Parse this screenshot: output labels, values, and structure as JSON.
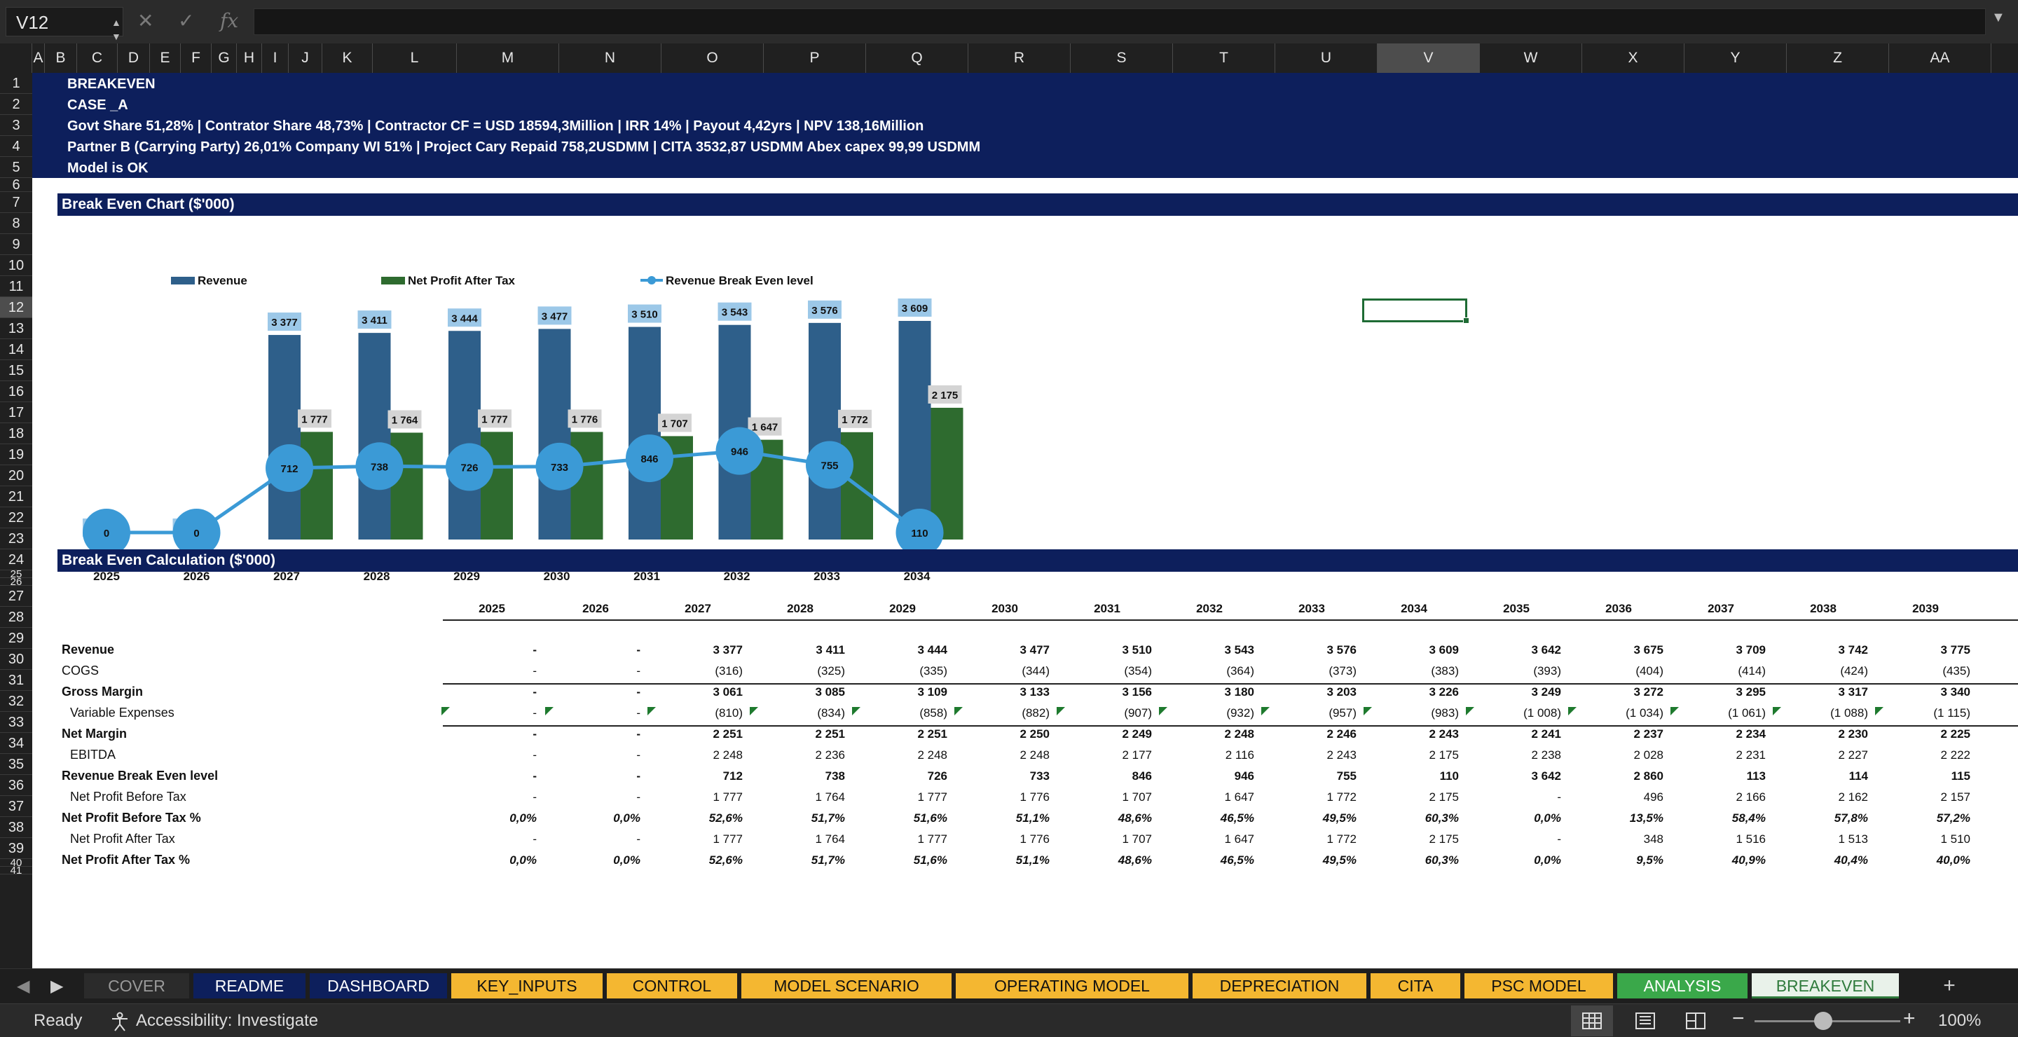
{
  "formula_bar": {
    "cell_ref": "V12",
    "fx": "fx",
    "cancel": "✕",
    "enter": "✓"
  },
  "columns": [
    "A",
    "B",
    "C",
    "D",
    "E",
    "F",
    "G",
    "H",
    "I",
    "J",
    "K",
    "L",
    "M",
    "N",
    "O",
    "P",
    "Q",
    "R",
    "S",
    "T",
    "U",
    "V",
    "W",
    "X",
    "Y",
    "Z",
    "AA"
  ],
  "selected_column": "V",
  "rows": [
    "1",
    "2",
    "3",
    "4",
    "5",
    "6",
    "7",
    "8",
    "9",
    "10",
    "11",
    "12",
    "13",
    "14",
    "15",
    "16",
    "17",
    "18",
    "19",
    "20",
    "21",
    "22",
    "23",
    "24",
    "25",
    "26",
    "27",
    "28",
    "29",
    "30",
    "31",
    "32",
    "33",
    "34",
    "35",
    "36",
    "37",
    "38",
    "39",
    "40",
    "41"
  ],
  "selected_row": "12",
  "header_lines": [
    "BREAKEVEN",
    "CASE _A",
    "Govt Share 51,28% | Contrator Share 48,73% |  Contractor CF = USD 18594,3Million | IRR 14% | Payout 4,42yrs | NPV 138,16Million",
    "Partner B (Carrying Party) 26,01% Company WI 51% |  Project Cary Repaid  758,2USDMM  |  CITA 3532,87  USDMM Abex capex 99,99  USDMM",
    "Model is OK"
  ],
  "chart_section_title": "Break Even Chart ($'000)",
  "calc_section_title": "Break Even Calculation ($'000)",
  "chart_data": {
    "type": "bar",
    "categories": [
      "2025",
      "2026",
      "2027",
      "2028",
      "2029",
      "2030",
      "2031",
      "2032",
      "2033",
      "2034"
    ],
    "series": [
      {
        "name": "Revenue",
        "type": "bar",
        "color": "#2e5f8a",
        "label_bg": "#9cc8e8",
        "values": [
          0,
          0,
          3377,
          3411,
          3444,
          3477,
          3510,
          3543,
          3576,
          3609
        ],
        "labels": [
          "0",
          "0",
          "3 377",
          "3 411",
          "3 444",
          "3 477",
          "3 510",
          "3 543",
          "3 576",
          "3 609"
        ]
      },
      {
        "name": "Net Profit After Tax",
        "type": "bar",
        "color": "#2e6b2f",
        "label_bg": "#d4d4d4",
        "values": [
          0,
          0,
          1777,
          1764,
          1777,
          1776,
          1707,
          1647,
          1772,
          2175
        ],
        "labels": [
          "-",
          "-",
          "1 777",
          "1 764",
          "1 777",
          "1 776",
          "1 707",
          "1 647",
          "1 772",
          "2 175"
        ]
      },
      {
        "name": "Revenue Break Even level",
        "type": "line",
        "color": "#3b9ad6",
        "values": [
          0,
          0,
          712,
          738,
          726,
          733,
          846,
          946,
          755,
          110
        ],
        "labels": [
          "0",
          "0",
          "712",
          "738",
          "726",
          "733",
          "846",
          "946",
          "755",
          "110"
        ]
      }
    ],
    "ylim": [
      0,
      3800
    ],
    "legend": "top"
  },
  "table": {
    "years": [
      "2025",
      "2026",
      "2027",
      "2028",
      "2029",
      "2030",
      "2031",
      "2032",
      "2033",
      "2034",
      "2035",
      "2036",
      "2037",
      "2038",
      "2039"
    ],
    "rows": [
      {
        "label": "Revenue",
        "bold": true,
        "indent": false,
        "italic": false,
        "values": [
          "-",
          "-",
          "3 377",
          "3 411",
          "3 444",
          "3 477",
          "3 510",
          "3 543",
          "3 576",
          "3 609",
          "3 642",
          "3 675",
          "3 709",
          "3 742",
          "3 775"
        ]
      },
      {
        "label": "COGS",
        "bold": false,
        "indent": false,
        "italic": false,
        "values": [
          "-",
          "-",
          "(316)",
          "(325)",
          "(335)",
          "(344)",
          "(354)",
          "(364)",
          "(373)",
          "(383)",
          "(393)",
          "(404)",
          "(414)",
          "(424)",
          "(435)"
        ]
      },
      {
        "label": "Gross Margin",
        "bold": true,
        "indent": false,
        "italic": false,
        "values": [
          "-",
          "-",
          "3 061",
          "3 085",
          "3 109",
          "3 133",
          "3 156",
          "3 180",
          "3 203",
          "3 226",
          "3 249",
          "3 272",
          "3 295",
          "3 317",
          "3 340"
        ]
      },
      {
        "label": "Variable Expenses",
        "bold": false,
        "indent": true,
        "italic": false,
        "values": [
          "-",
          "-",
          "(810)",
          "(834)",
          "(858)",
          "(882)",
          "(907)",
          "(932)",
          "(957)",
          "(983)",
          "(1 008)",
          "(1 034)",
          "(1 061)",
          "(1 088)",
          "(1 115)"
        ]
      },
      {
        "label": "Net Margin",
        "bold": true,
        "indent": false,
        "italic": false,
        "values": [
          "-",
          "-",
          "2 251",
          "2 251",
          "2 251",
          "2 250",
          "2 249",
          "2 248",
          "2 246",
          "2 243",
          "2 241",
          "2 237",
          "2 234",
          "2 230",
          "2 225"
        ]
      },
      {
        "label": "EBITDA",
        "bold": false,
        "indent": true,
        "italic": false,
        "values": [
          "-",
          "-",
          "2 248",
          "2 236",
          "2 248",
          "2 248",
          "2 177",
          "2 116",
          "2 243",
          "2 175",
          "2 238",
          "2 028",
          "2 231",
          "2 227",
          "2 222"
        ]
      },
      {
        "label": "Revenue Break Even level",
        "bold": true,
        "indent": false,
        "italic": false,
        "values": [
          "-",
          "-",
          "712",
          "738",
          "726",
          "733",
          "846",
          "946",
          "755",
          "110",
          "3 642",
          "2 860",
          "113",
          "114",
          "115"
        ]
      },
      {
        "label": "Net Profit Before Tax",
        "bold": false,
        "indent": true,
        "italic": false,
        "values": [
          "-",
          "-",
          "1 777",
          "1 764",
          "1 777",
          "1 776",
          "1 707",
          "1 647",
          "1 772",
          "2 175",
          "-",
          "496",
          "2 166",
          "2 162",
          "2 157"
        ]
      },
      {
        "label": "Net Profit Before Tax %",
        "bold": true,
        "indent": false,
        "italic": true,
        "values": [
          "0,0%",
          "0,0%",
          "52,6%",
          "51,7%",
          "51,6%",
          "51,1%",
          "48,6%",
          "46,5%",
          "49,5%",
          "60,3%",
          "0,0%",
          "13,5%",
          "58,4%",
          "57,8%",
          "57,2%"
        ]
      },
      {
        "label": "Net Profit After Tax",
        "bold": false,
        "indent": true,
        "italic": false,
        "values": [
          "-",
          "-",
          "1 777",
          "1 764",
          "1 777",
          "1 776",
          "1 707",
          "1 647",
          "1 772",
          "2 175",
          "-",
          "348",
          "1 516",
          "1 513",
          "1 510"
        ]
      },
      {
        "label": "Net Profit After Tax %",
        "bold": true,
        "indent": false,
        "italic": true,
        "values": [
          "0,0%",
          "0,0%",
          "52,6%",
          "51,7%",
          "51,6%",
          "51,1%",
          "48,6%",
          "46,5%",
          "49,5%",
          "60,3%",
          "0,0%",
          "9,5%",
          "40,9%",
          "40,4%",
          "40,0%"
        ]
      }
    ]
  },
  "sheet_tabs": [
    {
      "label": "COVER",
      "bg": "#2b2b2b",
      "fg": "#9a9a9a"
    },
    {
      "label": "README",
      "bg": "#0d1f5c",
      "fg": "#ffffff"
    },
    {
      "label": "DASHBOARD",
      "bg": "#0d1f5c",
      "fg": "#ffffff"
    },
    {
      "label": "KEY_INPUTS",
      "bg": "#f4b731",
      "fg": "#111111"
    },
    {
      "label": "CONTROL",
      "bg": "#f4b731",
      "fg": "#111111"
    },
    {
      "label": "MODEL SCENARIO",
      "bg": "#f4b731",
      "fg": "#111111"
    },
    {
      "label": "OPERATING MODEL",
      "bg": "#f4b731",
      "fg": "#111111"
    },
    {
      "label": "DEPRECIATION",
      "bg": "#f4b731",
      "fg": "#111111"
    },
    {
      "label": "CITA",
      "bg": "#f4b731",
      "fg": "#111111"
    },
    {
      "label": "PSC MODEL",
      "bg": "#f4b731",
      "fg": "#111111"
    },
    {
      "label": "ANALYSIS",
      "bg": "#3aa84a",
      "fg": "#ffffff"
    },
    {
      "label": "BREAKEVEN",
      "bg": "#e9f2ea",
      "fg": "#2f7a3c"
    }
  ],
  "add_sheet": "+",
  "status": {
    "ready": "Ready",
    "accessibility": "Accessibility: Investigate",
    "zoom": "100%",
    "minus": "−",
    "plus": "+"
  },
  "icons": {
    "prev_sheet": "chevron-left-icon",
    "next_sheet": "chevron-right-icon",
    "accessibility": "accessibility-icon",
    "normal_view": "grid-view-icon",
    "page_layout": "page-layout-icon",
    "page_break": "page-break-icon"
  }
}
